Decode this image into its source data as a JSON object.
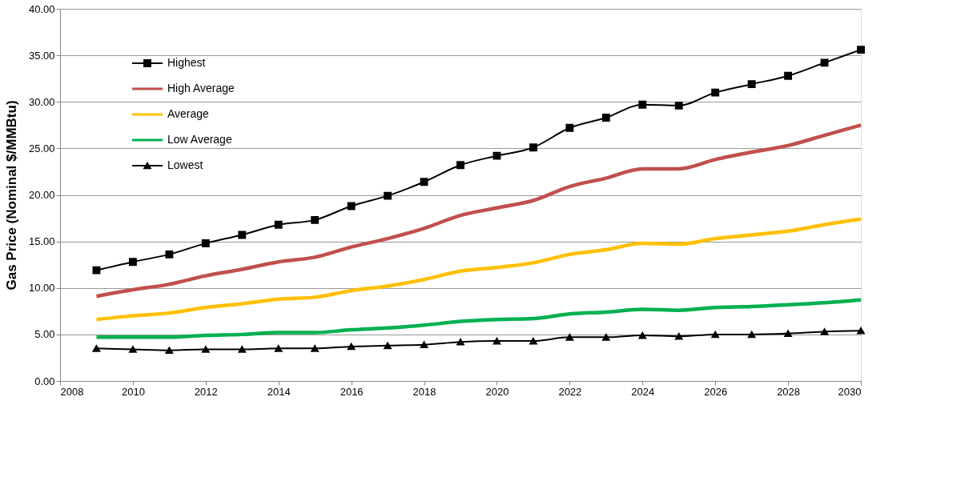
{
  "chart_data": {
    "type": "line",
    "ylabel": "Gas Price (Nominal $/MMBtu)",
    "x": [
      2009,
      2010,
      2011,
      2012,
      2013,
      2014,
      2015,
      2016,
      2017,
      2018,
      2019,
      2020,
      2021,
      2022,
      2023,
      2024,
      2025,
      2026,
      2027,
      2028,
      2029,
      2030
    ],
    "xlim": [
      2008,
      2030
    ],
    "xticks": [
      2008,
      2010,
      2012,
      2014,
      2016,
      2018,
      2020,
      2022,
      2024,
      2026,
      2028,
      2030
    ],
    "ylim": [
      0,
      40
    ],
    "yticks": [
      {
        "value": 0,
        "label": "0.00"
      },
      {
        "value": 5,
        "label": "5.00"
      },
      {
        "value": 10,
        "label": "10.00"
      },
      {
        "value": 15,
        "label": "15.00"
      },
      {
        "value": 20,
        "label": "20.00"
      },
      {
        "value": 25,
        "label": "25.00"
      },
      {
        "value": 30,
        "label": "30.00"
      },
      {
        "value": 35,
        "label": "35.00"
      },
      {
        "value": 40,
        "label": "40.00"
      }
    ],
    "grid": "y",
    "legend": "top left",
    "line_style": "solid",
    "series": [
      {
        "name": "Highest",
        "color": "#000000",
        "marker": "square",
        "values": [
          11.9,
          12.8,
          13.6,
          14.8,
          15.7,
          16.8,
          17.3,
          18.8,
          19.9,
          21.4,
          23.2,
          24.2,
          25.1,
          27.2,
          28.3,
          29.7,
          29.6,
          31.0,
          31.9,
          32.8,
          34.2,
          35.6
        ]
      },
      {
        "name": "High Average",
        "color": "#c0504d",
        "marker": "none",
        "values": [
          9.1,
          9.8,
          10.4,
          11.3,
          12.0,
          12.8,
          13.3,
          14.4,
          15.3,
          16.4,
          17.8,
          18.6,
          19.4,
          20.9,
          21.8,
          22.8,
          22.8,
          23.8,
          24.6,
          25.3,
          26.4,
          27.5
        ]
      },
      {
        "name": "Average",
        "color": "#ffc000",
        "marker": "none",
        "values": [
          6.6,
          7.0,
          7.3,
          7.9,
          8.3,
          8.8,
          9.0,
          9.7,
          10.2,
          10.9,
          11.8,
          12.2,
          12.7,
          13.6,
          14.1,
          14.8,
          14.7,
          15.3,
          15.7,
          16.1,
          16.8,
          17.4
        ]
      },
      {
        "name": "Low Average",
        "color": "#00b050",
        "marker": "none",
        "values": [
          4.7,
          4.7,
          4.7,
          4.9,
          5.0,
          5.2,
          5.2,
          5.5,
          5.7,
          6.0,
          6.4,
          6.6,
          6.7,
          7.2,
          7.4,
          7.7,
          7.6,
          7.9,
          8.0,
          8.2,
          8.4,
          8.7
        ]
      },
      {
        "name": "Lowest",
        "color": "#000000",
        "marker": "triangle",
        "values": [
          3.5,
          3.4,
          3.3,
          3.4,
          3.4,
          3.5,
          3.5,
          3.7,
          3.8,
          3.9,
          4.2,
          4.3,
          4.3,
          4.7,
          4.7,
          4.9,
          4.8,
          5.0,
          5.0,
          5.1,
          5.3,
          5.4
        ]
      }
    ]
  }
}
